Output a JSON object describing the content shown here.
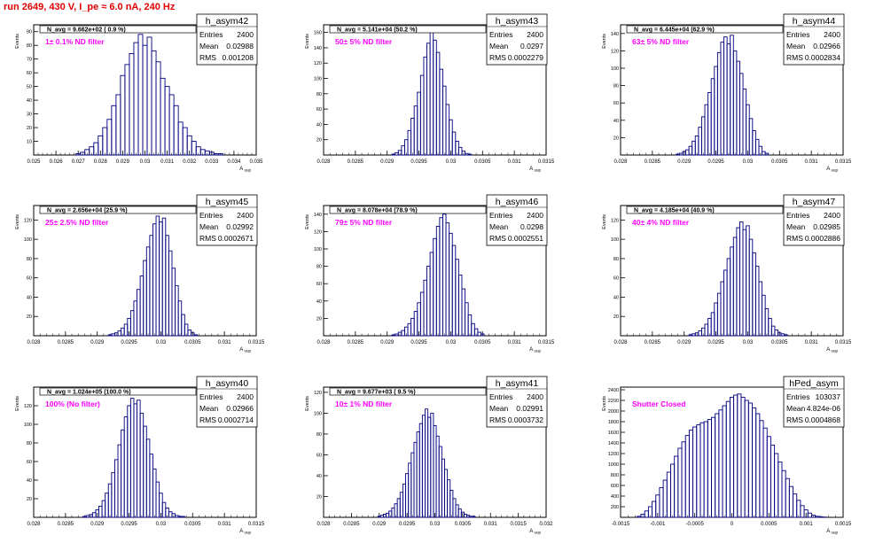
{
  "page_title": "run 2649,   430 V, I_pe ≈ 6.0 nA, 240 Hz",
  "colors": {
    "hist": "#000080",
    "filter": "#ff00ff",
    "title": "#e00000"
  },
  "stat_labels": {
    "entries": "Entries",
    "mean": "Mean",
    "rms": "RMS"
  },
  "chart_data": [
    {
      "type": "bar",
      "name": "h_asym42",
      "title": "h_asym42",
      "xlabel": "A_uup",
      "ylabel": "Events",
      "navg": "N_avg = 9.662e+02 ( 0.9 %)",
      "filter": "1± 0.1% ND filter",
      "stats": {
        "entries": "2400",
        "mean": "0.02988",
        "rms": "0.001208"
      },
      "xlim": [
        0.025,
        0.035
      ],
      "ylim": [
        0,
        95
      ],
      "xticks": [
        0.025,
        0.026,
        0.027,
        0.028,
        0.029,
        0.03,
        0.031,
        0.032,
        0.033,
        0.034,
        0.035
      ],
      "xticklabels": [
        "0.025",
        "0.026",
        "0.027",
        "0.028",
        "0.029",
        "0.03",
        "0.031",
        "0.032",
        "0.033",
        "0.034",
        "0.035"
      ],
      "yticks": [
        10,
        20,
        30,
        40,
        50,
        60,
        70,
        80,
        90
      ],
      "x": [
        0.027,
        0.0272,
        0.0274,
        0.0276,
        0.0278,
        0.028,
        0.0282,
        0.0284,
        0.0286,
        0.0288,
        0.029,
        0.0292,
        0.0294,
        0.0296,
        0.0298,
        0.03,
        0.0302,
        0.0304,
        0.0306,
        0.0308,
        0.031,
        0.0312,
        0.0314,
        0.0316,
        0.0318,
        0.032,
        0.0322,
        0.0324,
        0.0326,
        0.0328,
        0.033,
        0.0332,
        0.0334
      ],
      "values": [
        1,
        2,
        4,
        6,
        9,
        14,
        20,
        26,
        36,
        44,
        58,
        66,
        74,
        82,
        88,
        80,
        86,
        76,
        68,
        56,
        50,
        44,
        36,
        24,
        20,
        14,
        10,
        6,
        4,
        3,
        2,
        1,
        1
      ]
    },
    {
      "type": "bar",
      "name": "h_asym43",
      "title": "h_asym43",
      "xlabel": "A_uup",
      "ylabel": "Events",
      "navg": "N_avg = 5.141e+04 (50.2 %)",
      "filter": "50± 5% ND filter",
      "stats": {
        "entries": "2400",
        "mean": "0.0297",
        "rms": "0.0002279"
      },
      "xlim": [
        0.028,
        0.0315
      ],
      "ylim": [
        0,
        170
      ],
      "xticks": [
        0.028,
        0.0285,
        0.029,
        0.0295,
        0.03,
        0.0305,
        0.031,
        0.0315
      ],
      "xticklabels": [
        "0.028",
        "0.0285",
        "0.029",
        "0.0295",
        "0.03",
        "0.0305",
        "0.031",
        "0.0315"
      ],
      "yticks": [
        20,
        40,
        60,
        80,
        100,
        120,
        140,
        160
      ],
      "x": [
        0.0291,
        0.02915,
        0.0292,
        0.02925,
        0.0293,
        0.02935,
        0.0294,
        0.02945,
        0.0295,
        0.02955,
        0.0296,
        0.02965,
        0.0297,
        0.02975,
        0.0298,
        0.02985,
        0.0299,
        0.02995,
        0.03,
        0.03005,
        0.0301,
        0.03015,
        0.0302,
        0.03025,
        0.0303
      ],
      "values": [
        1,
        3,
        6,
        12,
        20,
        32,
        48,
        64,
        82,
        104,
        128,
        146,
        162,
        150,
        134,
        112,
        90,
        66,
        46,
        30,
        18,
        10,
        5,
        2,
        1
      ]
    },
    {
      "type": "bar",
      "name": "h_asym44",
      "title": "h_asym44",
      "xlabel": "A_uup",
      "ylabel": "Events",
      "navg": "N_avg = 6.445e+04 (62.9 %)",
      "filter": "63± 5% ND filter",
      "stats": {
        "entries": "2400",
        "mean": "0.02966",
        "rms": "0.0002834"
      },
      "xlim": [
        0.028,
        0.0315
      ],
      "ylim": [
        0,
        150
      ],
      "xticks": [
        0.028,
        0.0285,
        0.029,
        0.0295,
        0.03,
        0.0305,
        0.031,
        0.0315
      ],
      "xticklabels": [
        "0.028",
        "0.0285",
        "0.029",
        "0.0295",
        "0.03",
        "0.0305",
        "0.031",
        "0.0315"
      ],
      "yticks": [
        20,
        40,
        60,
        80,
        100,
        120,
        140
      ],
      "x": [
        0.0289,
        0.02895,
        0.029,
        0.02905,
        0.0291,
        0.02915,
        0.0292,
        0.02925,
        0.0293,
        0.02935,
        0.0294,
        0.02945,
        0.0295,
        0.02955,
        0.0296,
        0.02965,
        0.0297,
        0.02975,
        0.0298,
        0.02985,
        0.0299,
        0.02995,
        0.03,
        0.03005,
        0.0301,
        0.03015,
        0.0302,
        0.03025,
        0.0303
      ],
      "values": [
        1,
        2,
        4,
        6,
        10,
        16,
        22,
        32,
        44,
        58,
        72,
        88,
        102,
        118,
        130,
        136,
        128,
        138,
        120,
        108,
        94,
        76,
        58,
        42,
        28,
        18,
        10,
        4,
        2
      ]
    },
    {
      "type": "bar",
      "name": "h_asym45",
      "title": "h_asym45",
      "xlabel": "A_uup",
      "ylabel": "Events",
      "navg": "N_avg = 2.656e+04 (25.9 %)",
      "filter": "25± 2.5% ND filter",
      "stats": {
        "entries": "2400",
        "mean": "0.02992",
        "rms": "0.0002671"
      },
      "xlim": [
        0.028,
        0.0315
      ],
      "ylim": [
        0,
        135
      ],
      "xticks": [
        0.028,
        0.0285,
        0.029,
        0.0295,
        0.03,
        0.0305,
        0.031,
        0.0315
      ],
      "xticklabels": [
        "0.028",
        "0.0285",
        "0.029",
        "0.0295",
        "0.03",
        "0.0305",
        "0.031",
        "0.0315"
      ],
      "yticks": [
        20,
        40,
        60,
        80,
        100,
        120
      ],
      "x": [
        0.0292,
        0.02925,
        0.0293,
        0.02935,
        0.0294,
        0.02945,
        0.0295,
        0.02955,
        0.0296,
        0.02965,
        0.0297,
        0.02975,
        0.0298,
        0.02985,
        0.0299,
        0.02995,
        0.03,
        0.03005,
        0.0301,
        0.03015,
        0.0302,
        0.03025,
        0.0303,
        0.03035,
        0.0304,
        0.03045,
        0.0305,
        0.03055
      ],
      "values": [
        1,
        2,
        3,
        5,
        8,
        12,
        18,
        26,
        36,
        48,
        62,
        78,
        92,
        104,
        116,
        124,
        118,
        122,
        104,
        88,
        70,
        52,
        36,
        22,
        12,
        6,
        3,
        1
      ]
    },
    {
      "type": "bar",
      "name": "h_asym46",
      "title": "h_asym46",
      "xlabel": "A_uup",
      "ylabel": "Events",
      "navg": "N_avg = 8.078e+04 (78.9 %)",
      "filter": "79± 5% ND filter",
      "stats": {
        "entries": "2400",
        "mean": "0.0298",
        "rms": "0.0002551"
      },
      "xlim": [
        0.028,
        0.0315
      ],
      "ylim": [
        0,
        150
      ],
      "xticks": [
        0.028,
        0.0285,
        0.029,
        0.0295,
        0.03,
        0.0305,
        0.031,
        0.0315
      ],
      "xticklabels": [
        "0.028",
        "0.0285",
        "0.029",
        "0.0295",
        "0.03",
        "0.0305",
        "0.031",
        "0.0315"
      ],
      "yticks": [
        20,
        40,
        60,
        80,
        100,
        120,
        140
      ],
      "x": [
        0.0291,
        0.02915,
        0.0292,
        0.02925,
        0.0293,
        0.02935,
        0.0294,
        0.02945,
        0.0295,
        0.02955,
        0.0296,
        0.02965,
        0.0297,
        0.02975,
        0.0298,
        0.02985,
        0.0299,
        0.02995,
        0.03,
        0.03005,
        0.0301,
        0.03015,
        0.0302,
        0.03025,
        0.0303,
        0.03035,
        0.0304,
        0.03045,
        0.0305
      ],
      "values": [
        1,
        2,
        4,
        6,
        10,
        14,
        20,
        28,
        38,
        50,
        64,
        80,
        96,
        112,
        126,
        136,
        140,
        130,
        118,
        104,
        88,
        70,
        54,
        38,
        24,
        14,
        8,
        4,
        2
      ]
    },
    {
      "type": "bar",
      "name": "h_asym47",
      "title": "h_asym47",
      "xlabel": "A_uup",
      "ylabel": "Events",
      "navg": "N_avg = 4.185e+04 (40.9 %)",
      "filter": "40± 4% ND filter",
      "stats": {
        "entries": "2400",
        "mean": "0.02985",
        "rms": "0.0002886"
      },
      "xlim": [
        0.028,
        0.0315
      ],
      "ylim": [
        0,
        135
      ],
      "xticks": [
        0.028,
        0.0285,
        0.029,
        0.0295,
        0.03,
        0.0305,
        0.031,
        0.0315
      ],
      "xticklabels": [
        "0.028",
        "0.0285",
        "0.029",
        "0.0295",
        "0.03",
        "0.0305",
        "0.031",
        "0.0315"
      ],
      "yticks": [
        20,
        40,
        60,
        80,
        100,
        120
      ],
      "x": [
        0.0291,
        0.02915,
        0.0292,
        0.02925,
        0.0293,
        0.02935,
        0.0294,
        0.02945,
        0.0295,
        0.02955,
        0.0296,
        0.02965,
        0.0297,
        0.02975,
        0.0298,
        0.02985,
        0.0299,
        0.02995,
        0.03,
        0.03005,
        0.0301,
        0.03015,
        0.0302,
        0.03025,
        0.0303,
        0.03035,
        0.0304,
        0.03045,
        0.0305,
        0.03055,
        0.0306
      ],
      "values": [
        1,
        2,
        3,
        5,
        8,
        12,
        18,
        24,
        34,
        44,
        56,
        68,
        80,
        92,
        102,
        112,
        118,
        110,
        114,
        100,
        86,
        72,
        56,
        42,
        28,
        18,
        10,
        6,
        3,
        2,
        1
      ]
    },
    {
      "type": "bar",
      "name": "h_asym40",
      "title": "h_asym40",
      "xlabel": "A_uup",
      "ylabel": "Events",
      "navg": "N_avg = 1.024e+05 (100.0 %)",
      "filter": "100% (No filter)",
      "stats": {
        "entries": "2400",
        "mean": "0.02966",
        "rms": "0.0002714"
      },
      "xlim": [
        0.028,
        0.0315
      ],
      "ylim": [
        0,
        140
      ],
      "xticks": [
        0.028,
        0.0285,
        0.029,
        0.0295,
        0.03,
        0.0305,
        0.031,
        0.0315
      ],
      "xticklabels": [
        "0.028",
        "0.0285",
        "0.029",
        "0.0295",
        "0.03",
        "0.0305",
        "0.031",
        "0.0315"
      ],
      "yticks": [
        20,
        40,
        60,
        80,
        100,
        120
      ],
      "x": [
        0.0288,
        0.02885,
        0.0289,
        0.02895,
        0.029,
        0.02905,
        0.0291,
        0.02915,
        0.0292,
        0.02925,
        0.0293,
        0.02935,
        0.0294,
        0.02945,
        0.0295,
        0.02955,
        0.0296,
        0.02965,
        0.0297,
        0.02975,
        0.0298,
        0.02985,
        0.0299,
        0.02995,
        0.03,
        0.03005,
        0.0301,
        0.03015,
        0.0302,
        0.03025,
        0.0303,
        0.03035
      ],
      "values": [
        1,
        2,
        3,
        5,
        8,
        12,
        18,
        26,
        36,
        48,
        62,
        78,
        94,
        108,
        120,
        128,
        122,
        126,
        112,
        98,
        84,
        68,
        52,
        38,
        26,
        16,
        10,
        6,
        4,
        2,
        1,
        1
      ]
    },
    {
      "type": "bar",
      "name": "h_asym41",
      "title": "h_asym41",
      "xlabel": "A_uup",
      "ylabel": "Events",
      "navg": "N_avg = 9.677e+03 ( 9.5 %)",
      "filter": "10± 1% ND filter",
      "stats": {
        "entries": "2400",
        "mean": "0.02991",
        "rms": "0.0003732"
      },
      "xlim": [
        0.028,
        0.032
      ],
      "ylim": [
        0,
        125
      ],
      "xticks": [
        0.028,
        0.0285,
        0.029,
        0.0295,
        0.03,
        0.0305,
        0.031,
        0.0315,
        0.032
      ],
      "xticklabels": [
        "0.028",
        "0.0285",
        "0.029",
        "0.0295",
        "0.03",
        "0.0305",
        "0.031",
        "0.0315",
        "0.032"
      ],
      "yticks": [
        20,
        40,
        60,
        80,
        100,
        120
      ],
      "x": [
        0.029,
        0.02905,
        0.0291,
        0.02915,
        0.0292,
        0.02925,
        0.0293,
        0.02935,
        0.0294,
        0.02945,
        0.0295,
        0.02955,
        0.0296,
        0.02965,
        0.0297,
        0.02975,
        0.0298,
        0.02985,
        0.0299,
        0.02995,
        0.03,
        0.03005,
        0.0301,
        0.03015,
        0.0302,
        0.03025,
        0.0303,
        0.03035,
        0.0304,
        0.03045,
        0.0305,
        0.03055,
        0.0306,
        0.03065,
        0.0307
      ],
      "values": [
        1,
        2,
        3,
        4,
        6,
        9,
        13,
        18,
        24,
        32,
        42,
        52,
        62,
        72,
        82,
        90,
        98,
        104,
        96,
        100,
        88,
        78,
        68,
        56,
        46,
        36,
        26,
        18,
        12,
        8,
        5,
        3,
        2,
        1,
        1
      ]
    },
    {
      "type": "bar",
      "name": "hPed_asym",
      "title": "hPed_asym",
      "xlabel": "A_uup",
      "ylabel": "Events",
      "navg": "",
      "filter": "Shutter Closed",
      "stats": {
        "entries": "103037",
        "mean": "4.824e-06",
        "rms": "0.0004868"
      },
      "xlim": [
        -0.0015,
        0.0015
      ],
      "ylim": [
        0,
        2450
      ],
      "xticks": [
        -0.0015,
        -0.001,
        -0.0005,
        0,
        0.0005,
        0.001,
        0.0015
      ],
      "xticklabels": [
        "-0.0015",
        "-0.001",
        "-0.0005",
        "0",
        "0.0005",
        "0.001",
        "0.0015"
      ],
      "yticks": [
        200,
        400,
        600,
        800,
        1000,
        1200,
        1400,
        1600,
        1800,
        2000,
        2200,
        2400
      ],
      "x": [
        -0.00125,
        -0.0012,
        -0.00115,
        -0.0011,
        -0.00105,
        -0.001,
        -0.00095,
        -0.0009,
        -0.00085,
        -0.0008,
        -0.00075,
        -0.0007,
        -0.00065,
        -0.0006,
        -0.00055,
        -0.0005,
        -0.00045,
        -0.0004,
        -0.00035,
        -0.0003,
        -0.00025,
        -0.0002,
        -0.00015,
        -0.0001,
        -5e-05,
        0,
        5e-05,
        0.0001,
        0.00015,
        0.0002,
        0.00025,
        0.0003,
        0.00035,
        0.0004,
        0.00045,
        0.0005,
        0.00055,
        0.0006,
        0.00065,
        0.0007,
        0.00075,
        0.0008,
        0.00085,
        0.0009,
        0.00095,
        0.001,
        0.00105,
        0.0011,
        0.00115,
        0.0012,
        0.00125
      ],
      "values": [
        20,
        60,
        120,
        200,
        300,
        420,
        560,
        700,
        850,
        1000,
        1150,
        1300,
        1420,
        1540,
        1640,
        1700,
        1740,
        1780,
        1800,
        1840,
        1880,
        1950,
        2020,
        2100,
        2180,
        2260,
        2300,
        2320,
        2260,
        2200,
        2150,
        2060,
        1950,
        1820,
        1680,
        1520,
        1360,
        1200,
        1040,
        880,
        730,
        580,
        440,
        320,
        220,
        140,
        80,
        40,
        20,
        10,
        5
      ]
    }
  ]
}
